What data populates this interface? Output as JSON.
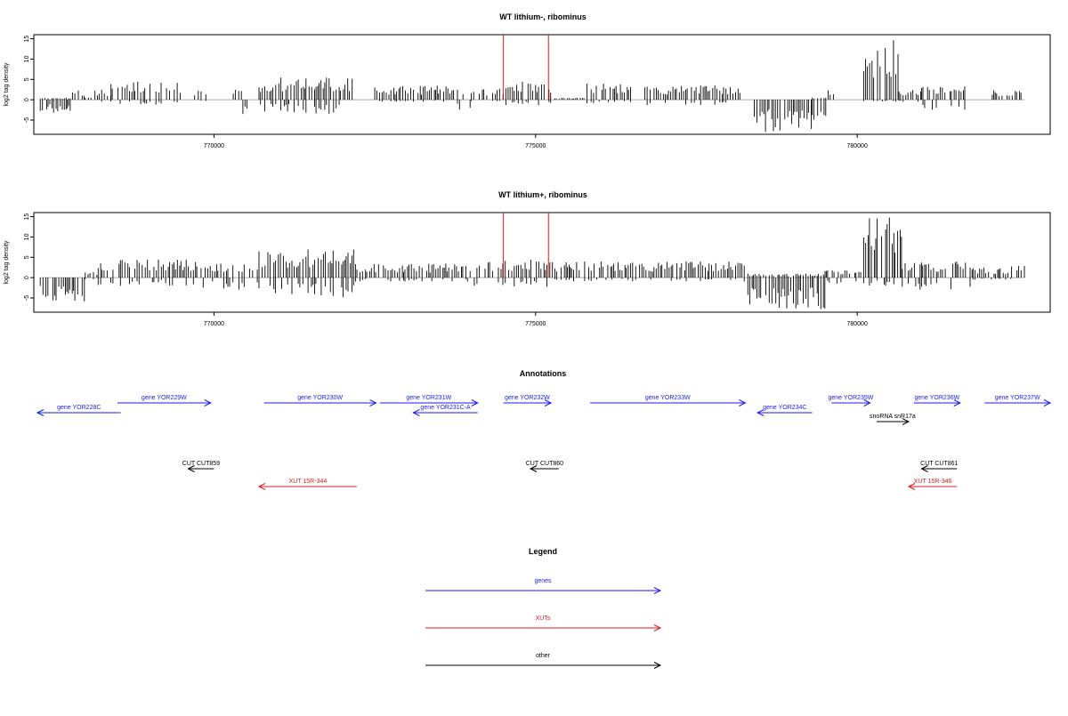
{
  "chart_data": [
    {
      "type": "bar",
      "title": "WT lithium-, ribominus",
      "ylabel": "log2 tag density",
      "xlim": [
        767200,
        783000
      ],
      "ylim": [
        -8.5,
        16
      ],
      "x_ticks": [
        770000,
        775000,
        780000
      ],
      "x_tick_labels": [
        "770000",
        "775000",
        "780000"
      ],
      "y_ticks": [
        -5,
        0,
        5,
        10,
        15
      ],
      "y_tick_labels": [
        "-5",
        "0",
        "5",
        "10",
        "15"
      ],
      "markers": [
        774500,
        775200
      ],
      "marker_color": "#e41a1c",
      "regions": [
        {
          "start": 767300,
          "end": 767800,
          "min": -3.5,
          "max": 0.5
        },
        {
          "start": 767800,
          "end": 768000,
          "min": -1.5,
          "max": 2.5
        },
        {
          "start": 768000,
          "end": 768150,
          "min": 0,
          "max": 0.8
        },
        {
          "start": 768150,
          "end": 768400,
          "min": -0.5,
          "max": 2.5
        },
        {
          "start": 768400,
          "end": 769500,
          "min": -1.2,
          "max": 4.5
        },
        {
          "start": 769500,
          "end": 769600,
          "min": 0,
          "max": 0
        },
        {
          "start": 769700,
          "end": 769900,
          "min": -0.5,
          "max": 2.5
        },
        {
          "start": 769900,
          "end": 770300,
          "min": 0,
          "max": 0
        },
        {
          "start": 770300,
          "end": 770450,
          "min": 0,
          "max": 2.5
        },
        {
          "start": 770450,
          "end": 770550,
          "min": -3.5,
          "max": 0
        },
        {
          "start": 770550,
          "end": 770700,
          "min": 0,
          "max": 0
        },
        {
          "start": 770700,
          "end": 772200,
          "min": -3.5,
          "max": 5.5
        },
        {
          "start": 772200,
          "end": 772500,
          "min": 0,
          "max": 0
        },
        {
          "start": 772500,
          "end": 773700,
          "min": -0.5,
          "max": 3.5
        },
        {
          "start": 773700,
          "end": 774000,
          "min": -2.5,
          "max": 3
        },
        {
          "start": 774000,
          "end": 774500,
          "min": -0.5,
          "max": 3
        },
        {
          "start": 774500,
          "end": 775300,
          "min": -1.5,
          "max": 4.5
        },
        {
          "start": 775300,
          "end": 775800,
          "min": 0,
          "max": 0.5
        },
        {
          "start": 775800,
          "end": 776500,
          "min": -1,
          "max": 4
        },
        {
          "start": 776500,
          "end": 776700,
          "min": 0,
          "max": 0
        },
        {
          "start": 776700,
          "end": 778200,
          "min": -1.5,
          "max": 3.5
        },
        {
          "start": 778200,
          "end": 778400,
          "min": 0,
          "max": 0
        },
        {
          "start": 778400,
          "end": 779300,
          "min": -8,
          "max": 0
        },
        {
          "start": 779300,
          "end": 779550,
          "min": -5,
          "max": 0.5
        },
        {
          "start": 779550,
          "end": 779650,
          "min": 0,
          "max": 3
        },
        {
          "start": 779650,
          "end": 780100,
          "min": 0,
          "max": 0
        },
        {
          "start": 780100,
          "end": 780650,
          "min": -0.5,
          "max": 15
        },
        {
          "start": 780650,
          "end": 781000,
          "min": -0.5,
          "max": 2.5
        },
        {
          "start": 781000,
          "end": 781700,
          "min": -2.5,
          "max": 3.5
        },
        {
          "start": 781700,
          "end": 782100,
          "min": 0,
          "max": 0
        },
        {
          "start": 782100,
          "end": 782600,
          "min": 0,
          "max": 2.5
        }
      ]
    },
    {
      "type": "bar",
      "title": "WT lithium+, ribominus",
      "ylabel": "log2 tag density",
      "xlim": [
        767200,
        783000
      ],
      "ylim": [
        -8.5,
        16
      ],
      "x_ticks": [
        770000,
        775000,
        780000
      ],
      "x_tick_labels": [
        "770000",
        "775000",
        "780000"
      ],
      "y_ticks": [
        -5,
        0,
        5,
        10,
        15
      ],
      "y_tick_labels": [
        "-5",
        "0",
        "5",
        "10",
        "15"
      ],
      "markers": [
        774500,
        775200
      ],
      "marker_color": "#e41a1c",
      "regions": [
        {
          "start": 767300,
          "end": 768000,
          "min": -6,
          "max": 0
        },
        {
          "start": 768000,
          "end": 768200,
          "min": -0.5,
          "max": 1.5
        },
        {
          "start": 768200,
          "end": 769800,
          "min": -2,
          "max": 4.5
        },
        {
          "start": 769800,
          "end": 770700,
          "min": -3,
          "max": 3.5
        },
        {
          "start": 770700,
          "end": 772200,
          "min": -5,
          "max": 7
        },
        {
          "start": 772200,
          "end": 774000,
          "min": -1,
          "max": 3.5
        },
        {
          "start": 774000,
          "end": 775300,
          "min": -2.5,
          "max": 4.5
        },
        {
          "start": 775300,
          "end": 778300,
          "min": -1,
          "max": 4
        },
        {
          "start": 778300,
          "end": 779500,
          "min": -8,
          "max": 1
        },
        {
          "start": 779500,
          "end": 780100,
          "min": -1.5,
          "max": 2
        },
        {
          "start": 780100,
          "end": 780700,
          "min": -2,
          "max": 15.5
        },
        {
          "start": 780700,
          "end": 781800,
          "min": -3,
          "max": 4
        },
        {
          "start": 781800,
          "end": 782400,
          "min": -0.5,
          "max": 2.5
        },
        {
          "start": 782400,
          "end": 782600,
          "min": 0,
          "max": 3.5
        }
      ]
    }
  ],
  "annotations": {
    "title": "Annotations",
    "features": [
      {
        "label": "gene YOR228C",
        "start": 767200,
        "end": 768550,
        "strand": "-",
        "row": 1,
        "kind": "gene"
      },
      {
        "label": "gene YOR229W",
        "start": 768500,
        "end": 769950,
        "strand": "+",
        "row": 0,
        "kind": "gene"
      },
      {
        "label": "gene YOR230W",
        "start": 770780,
        "end": 772520,
        "strand": "+",
        "row": 0,
        "kind": "gene"
      },
      {
        "label": "gene YOR231W",
        "start": 772580,
        "end": 774100,
        "strand": "+",
        "row": 0,
        "kind": "gene"
      },
      {
        "label": "gene YOR231C-A",
        "start": 773100,
        "end": 774100,
        "strand": "-",
        "row": 1,
        "kind": "gene"
      },
      {
        "label": "gene YOR232W",
        "start": 774500,
        "end": 775240,
        "strand": "+",
        "row": 0,
        "kind": "gene"
      },
      {
        "label": "gene YOR233W",
        "start": 775850,
        "end": 778260,
        "strand": "+",
        "row": 0,
        "kind": "gene"
      },
      {
        "label": "gene YOR234C",
        "start": 778450,
        "end": 779300,
        "strand": "-",
        "row": 1,
        "kind": "gene"
      },
      {
        "label": "gene YOR235W",
        "start": 779600,
        "end": 780200,
        "strand": "+",
        "row": 0,
        "kind": "gene"
      },
      {
        "label": "snoRNA snR17a",
        "start": 780300,
        "end": 780800,
        "strand": "+",
        "row": 2,
        "kind": "other"
      },
      {
        "label": "gene YOR236W",
        "start": 780880,
        "end": 781600,
        "strand": "+",
        "row": 0,
        "kind": "gene"
      },
      {
        "label": "gene YOR237W",
        "start": 781980,
        "end": 783000,
        "strand": "+",
        "row": 0,
        "kind": "gene"
      },
      {
        "label": "CUT CUT859",
        "start": 769600,
        "end": 770000,
        "strand": "-",
        "row": 3,
        "kind": "other"
      },
      {
        "label": "CUT CUT860",
        "start": 774920,
        "end": 775360,
        "strand": "-",
        "row": 3,
        "kind": "other"
      },
      {
        "label": "CUT CUT861",
        "start": 781000,
        "end": 781550,
        "strand": "-",
        "row": 3,
        "kind": "other"
      },
      {
        "label": "XUT 15R-344",
        "start": 770700,
        "end": 772220,
        "strand": "-",
        "row": 4,
        "kind": "xut"
      },
      {
        "label": "XUT 15R-346",
        "start": 780800,
        "end": 781550,
        "strand": "-",
        "row": 4,
        "kind": "xut"
      }
    ]
  },
  "legend": {
    "title": "Legend",
    "items": [
      {
        "label": "genes",
        "color": "#1a1aff"
      },
      {
        "label": "XUTs",
        "color": "#e41a1c"
      },
      {
        "label": "other",
        "color": "#000000"
      }
    ]
  },
  "colors": {
    "gene": "#1a1aff",
    "xut": "#e41a1c",
    "other": "#000000",
    "bar": "#000000",
    "baseline": "#aaaaaa"
  }
}
